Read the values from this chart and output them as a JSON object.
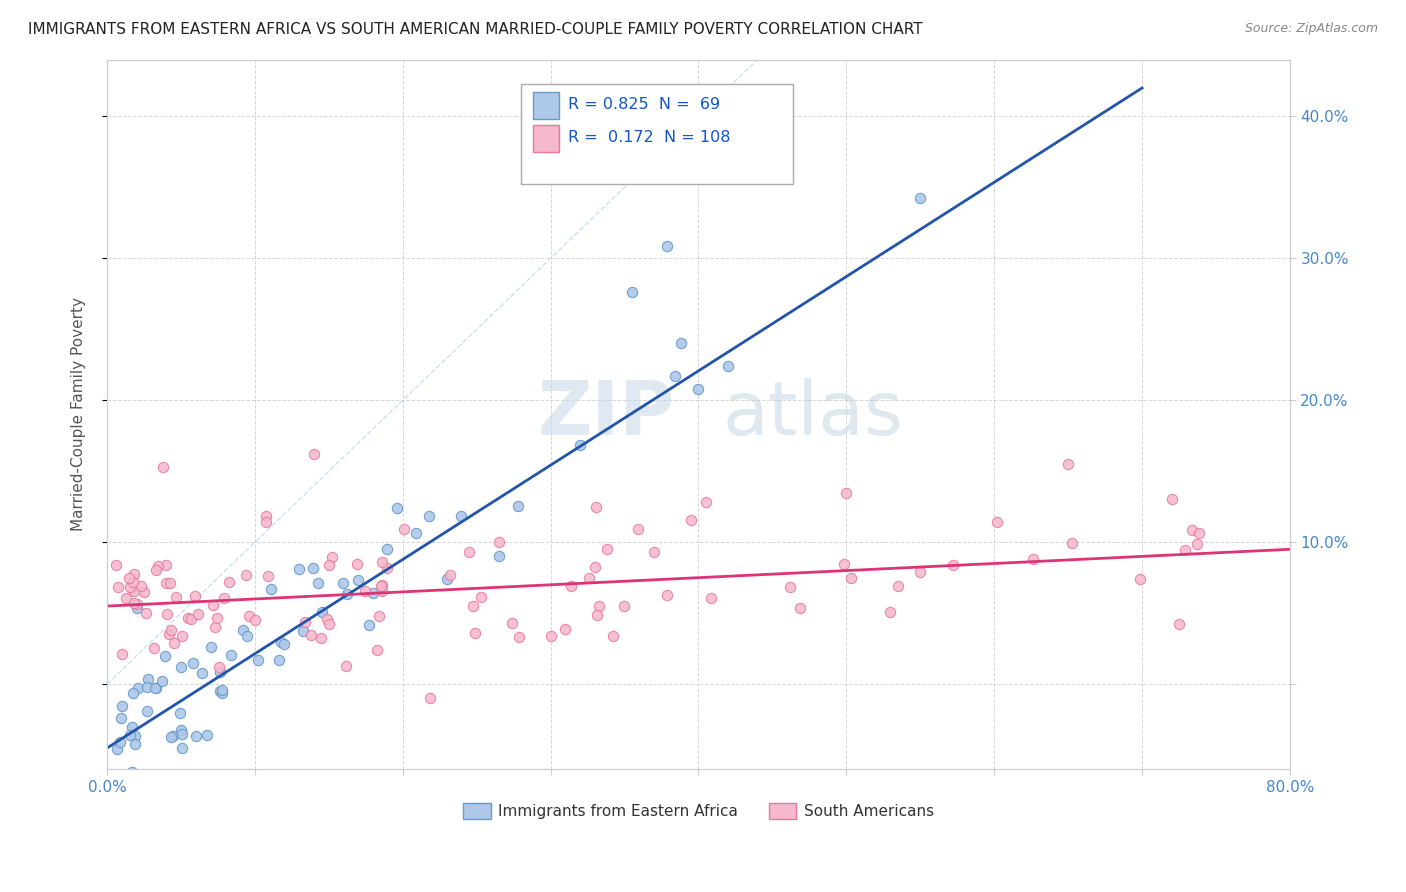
{
  "title": "IMMIGRANTS FROM EASTERN AFRICA VS SOUTH AMERICAN MARRIED-COUPLE FAMILY POVERTY CORRELATION CHART",
  "source": "Source: ZipAtlas.com",
  "ylabel": "Married-Couple Family Poverty",
  "legend_labels": [
    "Immigrants from Eastern Africa",
    "South Americans"
  ],
  "r_eastern": 0.825,
  "n_eastern": 69,
  "r_south": 0.172,
  "n_south": 108,
  "blue_scatter_face": "#adc8e8",
  "blue_scatter_edge": "#6699cc",
  "pink_scatter_face": "#f5b8cc",
  "pink_scatter_edge": "#e87899",
  "blue_line_color": "#2255aa",
  "pink_line_color": "#dd3377",
  "watermark_zip": "#d0dff0",
  "watermark_atlas": "#c8dae8",
  "grid_color": "#cccccc",
  "spine_color": "#cccccc",
  "tick_color": "#4488cc",
  "title_color": "#222222",
  "source_color": "#888888",
  "ylabel_color": "#555555",
  "xlim": [
    0.0,
    0.8
  ],
  "ylim": [
    -0.06,
    0.44
  ],
  "xticks": [
    0.0,
    0.1,
    0.2,
    0.3,
    0.4,
    0.5,
    0.6,
    0.7,
    0.8
  ],
  "yticks": [
    0.0,
    0.1,
    0.2,
    0.3,
    0.4
  ],
  "blue_line_x": [
    0.0,
    0.7
  ],
  "blue_line_y": [
    -0.045,
    0.42
  ],
  "pink_line_x": [
    0.0,
    0.8
  ],
  "pink_line_y": [
    0.055,
    0.095
  ]
}
